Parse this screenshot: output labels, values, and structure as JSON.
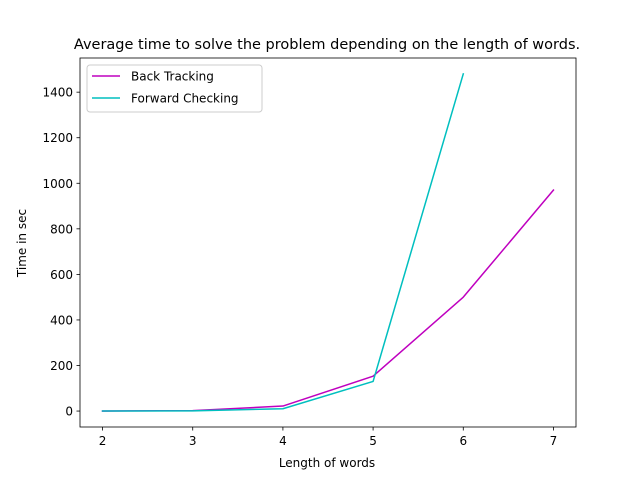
{
  "chart_data": {
    "type": "line",
    "title": "Average time to solve the problem depending on the length of words.",
    "xlabel": "Length of words",
    "ylabel": "Time in sec",
    "xlim": [
      1.75,
      7.25
    ],
    "ylim": [
      -70,
      1550
    ],
    "xticks": [
      2,
      3,
      4,
      5,
      6,
      7
    ],
    "yticks": [
      0,
      200,
      400,
      600,
      800,
      1000,
      1200,
      1400
    ],
    "grid": false,
    "legend_position": "upper left",
    "series": [
      {
        "name": "Back Tracking",
        "color": "#bf00bf",
        "x": [
          2,
          3,
          4,
          5,
          6,
          7
        ],
        "y": [
          0,
          2,
          22,
          153,
          500,
          970
        ]
      },
      {
        "name": "Forward Checking",
        "color": "#00bfbf",
        "x": [
          2,
          3,
          4,
          5,
          6
        ],
        "y": [
          0,
          1,
          10,
          130,
          1480
        ]
      }
    ]
  }
}
